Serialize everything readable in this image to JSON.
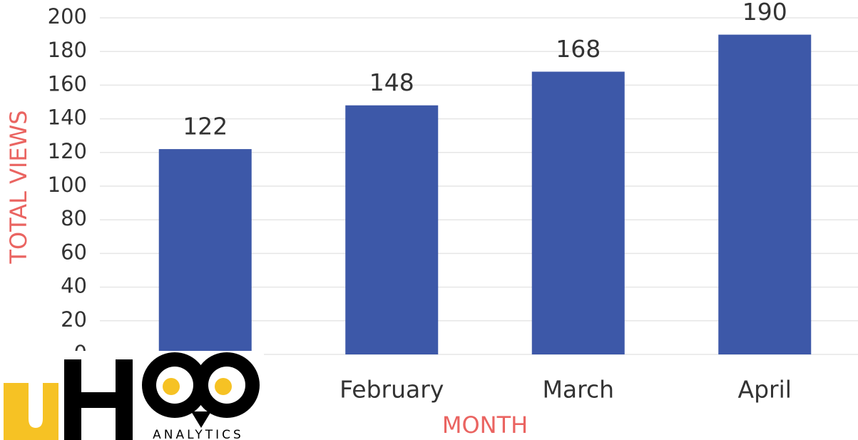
{
  "chart_data": {
    "type": "bar",
    "categories": [
      null,
      "February",
      "March",
      "April"
    ],
    "values": [
      122,
      148,
      168,
      190
    ],
    "color": "#3d58a8",
    "ylim": [
      0,
      200
    ],
    "yticks": [
      0,
      20,
      40,
      60,
      80,
      100,
      120,
      140,
      160,
      180,
      200
    ],
    "grid": true,
    "value_labels_shown": true,
    "x_label": "MONTH",
    "y_label": "TOTAL VIEWS"
  },
  "logo": {
    "tagline": "ANALYTICS"
  }
}
